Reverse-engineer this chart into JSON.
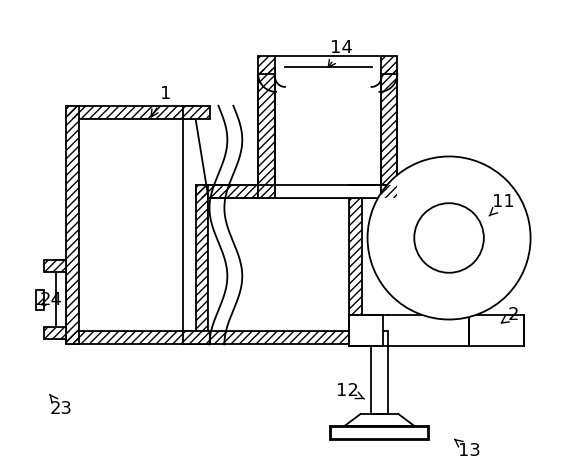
{
  "background_color": "#ffffff",
  "line_color": "#000000",
  "label_fontsize": 13,
  "figsize": [
    5.81,
    4.75
  ],
  "dpi": 100,
  "lw": 1.3
}
